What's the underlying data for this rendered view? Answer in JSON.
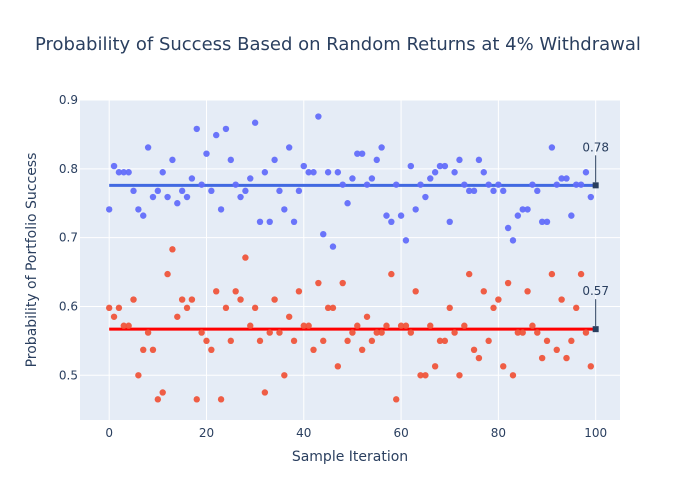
{
  "chart_data": {
    "type": "scatter",
    "title": "Probability of Success Based on Random Returns at 4% Withdrawal",
    "xlabel": "Sample Iteration",
    "ylabel": "Probability of Portfolio Success",
    "xlim": [
      -6,
      105
    ],
    "ylim": [
      0.435,
      0.9
    ],
    "xticks": [
      0,
      20,
      40,
      60,
      80,
      100
    ],
    "yticks": [
      0.5,
      0.6,
      0.7,
      0.8,
      0.9
    ],
    "grid": true,
    "legend": "none",
    "series": [
      {
        "color": "#636efa",
        "x": [
          0,
          1,
          2,
          3,
          4,
          5,
          6,
          7,
          8,
          9,
          10,
          11,
          12,
          13,
          14,
          15,
          16,
          17,
          18,
          19,
          20,
          21,
          22,
          23,
          24,
          25,
          26,
          27,
          28,
          29,
          30,
          31,
          32,
          33,
          34,
          35,
          36,
          37,
          38,
          39,
          40,
          41,
          42,
          43,
          44,
          45,
          46,
          47,
          48,
          49,
          50,
          51,
          52,
          53,
          54,
          55,
          56,
          57,
          58,
          59,
          60,
          61,
          62,
          63,
          64,
          65,
          66,
          67,
          68,
          69,
          70,
          71,
          72,
          73,
          74,
          75,
          76,
          77,
          78,
          79,
          80,
          81,
          82,
          83,
          84,
          85,
          86,
          87,
          88,
          89,
          90,
          91,
          92,
          93,
          94,
          95,
          96,
          97,
          98,
          99
        ],
        "y": [
          0.741,
          0.804,
          0.795,
          0.795,
          0.795,
          0.768,
          0.741,
          0.732,
          0.831,
          0.759,
          0.768,
          0.795,
          0.759,
          0.813,
          0.75,
          0.768,
          0.759,
          0.786,
          0.858,
          0.777,
          0.822,
          0.768,
          0.849,
          0.741,
          0.858,
          0.813,
          0.777,
          0.759,
          0.768,
          0.786,
          0.867,
          0.723,
          0.795,
          0.723,
          0.813,
          0.768,
          0.741,
          0.831,
          0.723,
          0.768,
          0.804,
          0.795,
          0.795,
          0.876,
          0.705,
          0.795,
          0.687,
          0.795,
          0.777,
          0.75,
          0.786,
          0.822,
          0.822,
          0.777,
          0.786,
          0.813,
          0.831,
          0.732,
          0.723,
          0.777,
          0.732,
          0.696,
          0.804,
          0.741,
          0.777,
          0.759,
          0.786,
          0.795,
          0.804,
          0.804,
          0.723,
          0.795,
          0.813,
          0.777,
          0.768,
          0.768,
          0.813,
          0.795,
          0.777,
          0.768,
          0.777,
          0.768,
          0.714,
          0.696,
          0.732,
          0.741,
          0.741,
          0.777,
          0.768,
          0.723,
          0.723,
          0.831,
          0.777,
          0.786,
          0.786,
          0.732,
          0.777,
          0.777,
          0.795,
          0.759
        ]
      },
      {
        "color": "#ef553b",
        "x": [
          0,
          1,
          2,
          3,
          4,
          5,
          6,
          7,
          8,
          9,
          10,
          11,
          12,
          13,
          14,
          15,
          16,
          17,
          18,
          19,
          20,
          21,
          22,
          23,
          24,
          25,
          26,
          27,
          28,
          29,
          30,
          31,
          32,
          33,
          34,
          35,
          36,
          37,
          38,
          39,
          40,
          41,
          42,
          43,
          44,
          45,
          46,
          47,
          48,
          49,
          50,
          51,
          52,
          53,
          54,
          55,
          56,
          57,
          58,
          59,
          60,
          61,
          62,
          63,
          64,
          65,
          66,
          67,
          68,
          69,
          70,
          71,
          72,
          73,
          74,
          75,
          76,
          77,
          78,
          79,
          80,
          81,
          82,
          83,
          84,
          85,
          86,
          87,
          88,
          89,
          90,
          91,
          92,
          93,
          94,
          95,
          96,
          97,
          98,
          99
        ],
        "y": [
          0.598,
          0.585,
          0.598,
          0.572,
          0.572,
          0.61,
          0.5,
          0.537,
          0.562,
          0.537,
          0.465,
          0.475,
          0.647,
          0.683,
          0.585,
          0.61,
          0.598,
          0.61,
          0.465,
          0.562,
          0.55,
          0.537,
          0.622,
          0.465,
          0.598,
          0.55,
          0.622,
          0.61,
          0.671,
          0.572,
          0.598,
          0.55,
          0.475,
          0.562,
          0.61,
          0.562,
          0.5,
          0.585,
          0.55,
          0.622,
          0.572,
          0.572,
          0.537,
          0.634,
          0.55,
          0.598,
          0.598,
          0.513,
          0.634,
          0.55,
          0.562,
          0.572,
          0.537,
          0.585,
          0.55,
          0.562,
          0.562,
          0.572,
          0.647,
          0.465,
          0.572,
          0.572,
          0.562,
          0.622,
          0.5,
          0.5,
          0.572,
          0.513,
          0.55,
          0.55,
          0.598,
          0.562,
          0.5,
          0.572,
          0.647,
          0.537,
          0.525,
          0.622,
          0.55,
          0.598,
          0.61,
          0.513,
          0.634,
          0.5,
          0.562,
          0.562,
          0.622,
          0.572,
          0.562,
          0.525,
          0.55,
          0.647,
          0.537,
          0.61,
          0.525,
          0.55,
          0.598,
          0.647,
          0.562,
          0.513
        ]
      }
    ],
    "mean_lines": [
      {
        "color": "#4169e1",
        "y": 0.776,
        "x_start": 0,
        "x_end": 100,
        "label": "0.78"
      },
      {
        "color": "#ff0000",
        "y": 0.567,
        "x_start": 0,
        "x_end": 100,
        "label": "0.57"
      }
    ]
  }
}
